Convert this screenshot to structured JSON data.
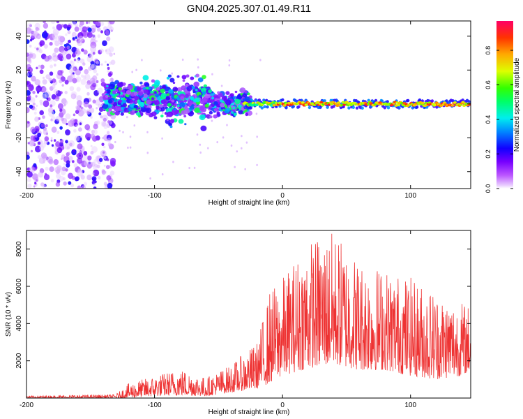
{
  "title": "GN04.2025.307.01.49.R11",
  "chart_data": [
    {
      "type": "heatmap",
      "name": "spectrogram",
      "xlabel": "Height of straight line (km)",
      "ylabel": "Frequency (Hz)",
      "xlim": [
        -200,
        147
      ],
      "ylim": [
        -50,
        49
      ],
      "xticks": [
        -200,
        -100,
        0,
        100
      ],
      "yticks": [
        -40,
        -20,
        0,
        20,
        40
      ],
      "colorbar": {
        "label": "Normalized spectral amplitude",
        "range": [
          0,
          0.97
        ],
        "ticks": [
          0.0,
          0.2,
          0.4,
          0.6,
          0.8
        ]
      },
      "regions": [
        {
          "description": "broadband noise",
          "x_range": [
            -200,
            -135
          ],
          "freq_range": [
            -50,
            49
          ],
          "amplitude": [
            0.05,
            0.3
          ]
        },
        {
          "description": "turbulent band",
          "x_range": [
            -140,
            -30
          ],
          "freq_range": [
            -12,
            15
          ],
          "amplitude": [
            0.15,
            0.6
          ]
        },
        {
          "description": "strong narrow tone",
          "x_range": [
            -30,
            147
          ],
          "freq_range": [
            -3,
            3
          ],
          "amplitude": [
            0.4,
            0.97
          ]
        }
      ]
    },
    {
      "type": "line",
      "name": "snr",
      "xlabel": "Height of straight line (km)",
      "ylabel": "SNR (10 * v/v)",
      "xlim": [
        -200,
        147
      ],
      "ylim": [
        0,
        9000
      ],
      "xticks": [
        -200,
        -100,
        0,
        100
      ],
      "yticks": [
        2000,
        4000,
        6000,
        8000
      ],
      "color": "#ee3333",
      "envelope": [
        {
          "x": -200,
          "low": 0,
          "high": 120
        },
        {
          "x": -130,
          "low": 0,
          "high": 200
        },
        {
          "x": -120,
          "low": 0,
          "high": 800
        },
        {
          "x": -100,
          "low": 100,
          "high": 1200
        },
        {
          "x": -80,
          "low": 150,
          "high": 1600
        },
        {
          "x": -60,
          "low": 100,
          "high": 1100
        },
        {
          "x": -40,
          "low": 300,
          "high": 1800
        },
        {
          "x": -20,
          "low": 500,
          "high": 3000
        },
        {
          "x": -10,
          "low": 800,
          "high": 5800
        },
        {
          "x": 0,
          "low": 1200,
          "high": 6500
        },
        {
          "x": 20,
          "low": 1600,
          "high": 8500
        },
        {
          "x": 40,
          "low": 1800,
          "high": 9000
        },
        {
          "x": 60,
          "low": 1500,
          "high": 7500
        },
        {
          "x": 80,
          "low": 1500,
          "high": 7000
        },
        {
          "x": 100,
          "low": 1200,
          "high": 6500
        },
        {
          "x": 120,
          "low": 1000,
          "high": 5800
        },
        {
          "x": 140,
          "low": 1200,
          "high": 5200
        },
        {
          "x": 147,
          "low": 1500,
          "high": 5000
        }
      ]
    }
  ]
}
